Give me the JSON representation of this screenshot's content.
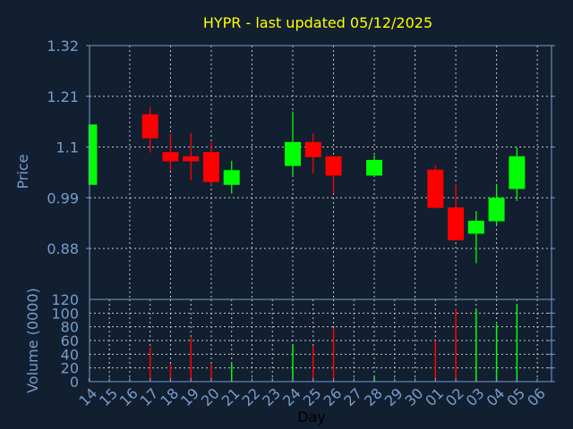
{
  "chart_data": [
    {
      "type": "candlestick",
      "title": "HYPR - last updated 05/12/2025",
      "xlabel": "",
      "ylabel": "Price",
      "ylim": [
        0.825,
        1.32
      ],
      "yticks": [
        "1.32",
        "1.21",
        "1.1",
        "0.99",
        "0.88"
      ],
      "grid": true,
      "colors": {
        "up": "#00ff00",
        "down": "#ff0000",
        "background": "#111f30",
        "axis": "#7a9ccc",
        "title": "#ffff00"
      },
      "days": [
        "14",
        "15",
        "16",
        "17",
        "18",
        "19",
        "20",
        "21",
        "22",
        "23",
        "24",
        "25",
        "26",
        "27",
        "28",
        "29",
        "30",
        "01",
        "02",
        "03",
        "04",
        "05",
        "06"
      ],
      "candles": [
        {
          "day": "14",
          "open": 1.018,
          "high": 1.149,
          "low": 1.018,
          "close": 1.149
        },
        {
          "day": "17",
          "open": 1.171,
          "high": 1.186,
          "low": 1.088,
          "close": 1.119
        },
        {
          "day": "18",
          "open": 1.089,
          "high": 1.128,
          "low": 1.049,
          "close": 1.069
        },
        {
          "day": "19",
          "open": 1.08,
          "high": 1.13,
          "low": 1.028,
          "close": 1.069
        },
        {
          "day": "20",
          "open": 1.089,
          "high": 1.111,
          "low": 1.017,
          "close": 1.024
        },
        {
          "day": "21",
          "open": 1.018,
          "high": 1.07,
          "low": 0.999,
          "close": 1.05
        },
        {
          "day": "24",
          "open": 1.059,
          "high": 1.177,
          "low": 1.038,
          "close": 1.111
        },
        {
          "day": "25",
          "open": 1.111,
          "high": 1.13,
          "low": 1.043,
          "close": 1.078
        },
        {
          "day": "26",
          "open": 1.08,
          "high": 1.08,
          "low": 0.999,
          "close": 1.038
        },
        {
          "day": "28",
          "open": 1.038,
          "high": 1.082,
          "low": 1.038,
          "close": 1.072
        },
        {
          "day": "01",
          "open": 1.051,
          "high": 1.06,
          "low": 0.968,
          "close": 0.968
        },
        {
          "day": "02",
          "open": 0.969,
          "high": 1.02,
          "low": 0.898,
          "close": 0.898
        },
        {
          "day": "03",
          "open": 0.912,
          "high": 0.961,
          "low": 0.848,
          "close": 0.94
        },
        {
          "day": "04",
          "open": 0.939,
          "high": 1.02,
          "low": 0.931,
          "close": 0.99
        },
        {
          "day": "05",
          "open": 1.009,
          "high": 1.099,
          "low": 0.983,
          "close": 1.08
        }
      ]
    },
    {
      "type": "bar",
      "title": "",
      "xlabel": "Day",
      "ylabel": "Volume (0000)",
      "ylim": [
        0,
        120
      ],
      "yticks": [
        "120",
        "100",
        "80",
        "60",
        "40",
        "20",
        "0"
      ],
      "grid": true,
      "volumes": [
        {
          "day": "17",
          "value": 50,
          "dir": "down"
        },
        {
          "day": "18",
          "value": 26,
          "dir": "down"
        },
        {
          "day": "19",
          "value": 64,
          "dir": "down"
        },
        {
          "day": "20",
          "value": 26,
          "dir": "down"
        },
        {
          "day": "21",
          "value": 27,
          "dir": "up"
        },
        {
          "day": "24",
          "value": 53,
          "dir": "up"
        },
        {
          "day": "25",
          "value": 52,
          "dir": "down"
        },
        {
          "day": "26",
          "value": 78,
          "dir": "down"
        },
        {
          "day": "28",
          "value": 8,
          "dir": "up"
        },
        {
          "day": "01",
          "value": 60,
          "dir": "down"
        },
        {
          "day": "02",
          "value": 107,
          "dir": "down"
        },
        {
          "day": "03",
          "value": 105,
          "dir": "up"
        },
        {
          "day": "04",
          "value": 84,
          "dir": "up"
        },
        {
          "day": "05",
          "value": 112,
          "dir": "up"
        }
      ]
    }
  ]
}
